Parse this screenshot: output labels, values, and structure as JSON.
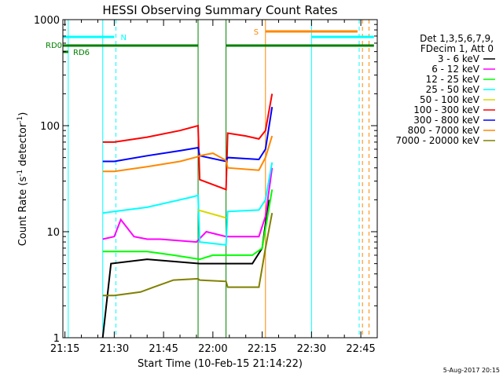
{
  "chart_data": {
    "type": "line",
    "title": "HESSI Observing Summary Count Rates",
    "xlabel": "Start Time (10-Feb-15 21:14:22)",
    "ylabel_main": "Count Rate (s",
    "ylabel_sup1": "-1",
    "ylabel_mid": " detector",
    "ylabel_sup2": "-1",
    "ylabel_end": ")",
    "footer_date": "5-Aug-2017 20:15",
    "y_scale": "log",
    "ylim": [
      1,
      1000
    ],
    "y_ticks": [
      {
        "value": 1,
        "label": "1"
      },
      {
        "value": 10,
        "label": "10"
      },
      {
        "value": 100,
        "label": "100"
      },
      {
        "value": 1000,
        "label": "1000"
      }
    ],
    "xlim_minutes": [
      1274.37,
      1370
    ],
    "x_ticks": [
      {
        "minute": 1275,
        "label": "21:15"
      },
      {
        "minute": 1290,
        "label": "21:30"
      },
      {
        "minute": 1305,
        "label": "21:45"
      },
      {
        "minute": 1320,
        "label": "22:00"
      },
      {
        "minute": 1335,
        "label": "22:15"
      },
      {
        "minute": 1350,
        "label": "22:30"
      },
      {
        "minute": 1365,
        "label": "22:45"
      }
    ],
    "legend_title": [
      "Det 1,3,5,6,7,9,",
      "FDecim 1, Att 0"
    ],
    "series": [
      {
        "name": "3 - 6 keV",
        "color": "#000000",
        "values": [
          [
            1286.5,
            1
          ],
          [
            1289,
            5
          ],
          [
            1300,
            5.5
          ],
          [
            1316,
            5
          ],
          [
            1324,
            5
          ],
          [
            1332,
            5
          ],
          [
            1335,
            7
          ],
          [
            1337,
            20
          ]
        ]
      },
      {
        "name": "6 - 12 keV",
        "color": "#ff00ff",
        "values": [
          [
            1286.5,
            8.5
          ],
          [
            1290,
            9
          ],
          [
            1292,
            13
          ],
          [
            1296,
            9
          ],
          [
            1300,
            8.5
          ],
          [
            1304,
            8.5
          ],
          [
            1315,
            8
          ],
          [
            1318,
            10
          ],
          [
            1324,
            9
          ],
          [
            1328,
            9
          ],
          [
            1334,
            9
          ],
          [
            1336,
            14
          ],
          [
            1338,
            40
          ]
        ]
      },
      {
        "name": "12 - 25 keV",
        "color": "#00ff00",
        "values": [
          [
            1286.5,
            6.5
          ],
          [
            1290,
            6.5
          ],
          [
            1300,
            6.5
          ],
          [
            1308,
            6
          ],
          [
            1316,
            5.5
          ],
          [
            1320,
            6
          ],
          [
            1324,
            6
          ],
          [
            1332,
            6
          ],
          [
            1335,
            7
          ],
          [
            1338,
            25
          ]
        ]
      },
      {
        "name": "25 - 50 keV",
        "color": "#00ffff",
        "values": [
          [
            1286.5,
            15
          ],
          [
            1290,
            15.5
          ],
          [
            1300,
            17
          ],
          [
            1313,
            21
          ],
          [
            1315.5,
            22
          ],
          [
            1316,
            8
          ],
          [
            1324,
            7.5
          ],
          [
            1324.5,
            15.5
          ],
          [
            1334,
            16
          ],
          [
            1336,
            20
          ],
          [
            1338,
            45
          ]
        ]
      },
      {
        "name": "50 - 100 keV",
        "color": "#d8d800",
        "values": [
          [
            1315.5,
            16
          ],
          [
            1324,
            13.5
          ]
        ]
      },
      {
        "name": "100 - 300 keV",
        "color": "#ff0000",
        "values": [
          [
            1286.5,
            70
          ],
          [
            1290,
            70
          ],
          [
            1300,
            78
          ],
          [
            1310,
            90
          ],
          [
            1315.5,
            100
          ],
          [
            1316,
            31
          ],
          [
            1324,
            25
          ],
          [
            1324.5,
            85
          ],
          [
            1330,
            80
          ],
          [
            1334,
            75
          ],
          [
            1336,
            90
          ],
          [
            1338,
            200
          ]
        ]
      },
      {
        "name": "300 - 800 keV",
        "color": "#0000ff",
        "values": [
          [
            1286.5,
            46
          ],
          [
            1290,
            46
          ],
          [
            1300,
            52
          ],
          [
            1310,
            58
          ],
          [
            1315.5,
            62
          ],
          [
            1316,
            52
          ],
          [
            1324,
            46
          ],
          [
            1324.5,
            50
          ],
          [
            1334,
            48
          ],
          [
            1336,
            60
          ],
          [
            1338,
            150
          ]
        ]
      },
      {
        "name": "800 - 7000 keV",
        "color": "#ff8800",
        "values": [
          [
            1286.5,
            37
          ],
          [
            1290,
            37
          ],
          [
            1300,
            41
          ],
          [
            1310,
            46
          ],
          [
            1315.5,
            51
          ],
          [
            1316,
            52
          ],
          [
            1320,
            55
          ],
          [
            1324,
            47
          ],
          [
            1324.5,
            40
          ],
          [
            1334,
            38
          ],
          [
            1336,
            50
          ],
          [
            1338,
            80
          ]
        ]
      },
      {
        "name": "7000 - 20000 keV",
        "color": "#808000",
        "values": [
          [
            1286.5,
            2.5
          ],
          [
            1290,
            2.5
          ],
          [
            1298,
            2.7
          ],
          [
            1302,
            3
          ],
          [
            1308,
            3.5
          ],
          [
            1315.5,
            3.6
          ],
          [
            1316,
            3.5
          ],
          [
            1324,
            3.4
          ],
          [
            1324.5,
            3
          ],
          [
            1334,
            3
          ],
          [
            1336,
            7
          ],
          [
            1338,
            15
          ]
        ]
      }
    ],
    "markers": {
      "flags": [
        {
          "label": "N",
          "color": "#00ffff",
          "segments": [
            [
              1274.5,
              1290
            ],
            [
              1350,
              1369
            ]
          ]
        },
        {
          "label": "S",
          "color": "#ff8800",
          "segments": [
            [
              1336,
              1364
            ]
          ]
        },
        {
          "label": "RD0",
          "color": "#008000",
          "segments": [
            [
              1274.5,
              1315.5
            ],
            [
              1324,
              1369
            ]
          ]
        },
        {
          "label": "RD6",
          "color": "#008000",
          "segments": [
            [
              1274.5,
              1276
            ]
          ]
        }
      ],
      "vertical_lines": [
        {
          "minute": 1276,
          "color": "#00ffff",
          "style": "solid"
        },
        {
          "minute": 1286.5,
          "color": "#00ffff",
          "style": "solid"
        },
        {
          "minute": 1290.5,
          "color": "#00ffff",
          "style": "dashed"
        },
        {
          "minute": 1315.5,
          "color": "#008000",
          "style": "solid"
        },
        {
          "minute": 1324,
          "color": "#008000",
          "style": "solid"
        },
        {
          "minute": 1336,
          "color": "#ff8800",
          "style": "solid"
        },
        {
          "minute": 1350,
          "color": "#00ffff",
          "style": "solid"
        },
        {
          "minute": 1365.5,
          "color": "#ff8800",
          "style": "dashed"
        },
        {
          "minute": 1367.5,
          "color": "#ff8800",
          "style": "dashed"
        },
        {
          "minute": 1364.5,
          "color": "#00ffff",
          "style": "dashed"
        }
      ]
    }
  }
}
